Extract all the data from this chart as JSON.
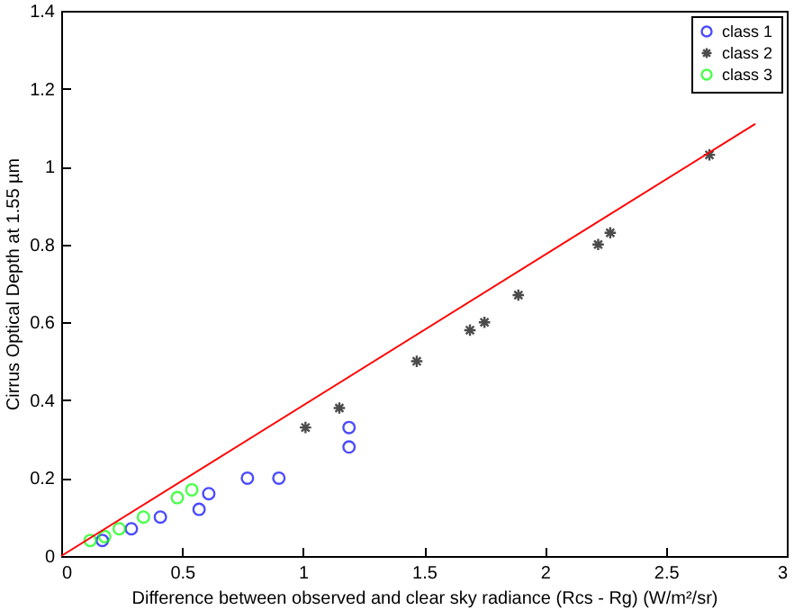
{
  "chart_data": {
    "type": "scatter",
    "xlabel": "Difference between observed and clear sky radiance (Rcs - Rg)  (W/m²/sr)",
    "ylabel": "Cirrus Optical Depth at 1.55 µm",
    "xlim": [
      0,
      3
    ],
    "ylim": [
      0,
      1.4
    ],
    "xticks": [
      0,
      0.5,
      1,
      1.5,
      2,
      2.5,
      3
    ],
    "yticks": [
      0,
      0.2,
      0.4,
      0.6,
      0.8,
      1,
      1.2,
      1.4
    ],
    "legend": "top right",
    "grid": false,
    "series": [
      {
        "name": "class 1",
        "color": "#0000ff",
        "marker": "circle",
        "x": [
          0.17,
          0.29,
          0.41,
          0.57,
          0.61,
          0.77,
          0.9,
          1.19,
          1.19
        ],
        "values": [
          0.04,
          0.07,
          0.1,
          0.12,
          0.16,
          0.2,
          0.2,
          0.33,
          0.28
        ]
      },
      {
        "name": "class 2",
        "color": "#000000",
        "marker": "cross",
        "x": [
          1.01,
          1.15,
          1.47,
          1.69,
          1.75,
          1.89,
          2.22,
          2.27,
          2.68
        ],
        "values": [
          0.33,
          0.38,
          0.5,
          0.58,
          0.6,
          0.67,
          0.8,
          0.83,
          1.03
        ]
      },
      {
        "name": "class 3",
        "color": "#00ff00",
        "marker": "circle",
        "x": [
          0.12,
          0.18,
          0.24,
          0.34,
          0.48,
          0.54
        ],
        "values": [
          0.04,
          0.05,
          0.07,
          0.1,
          0.15,
          0.17
        ]
      },
      {
        "type": "line",
        "color": "#ff0000",
        "marker": "none",
        "x": [
          0,
          2.87
        ],
        "values": [
          0,
          1.11
        ]
      }
    ]
  }
}
